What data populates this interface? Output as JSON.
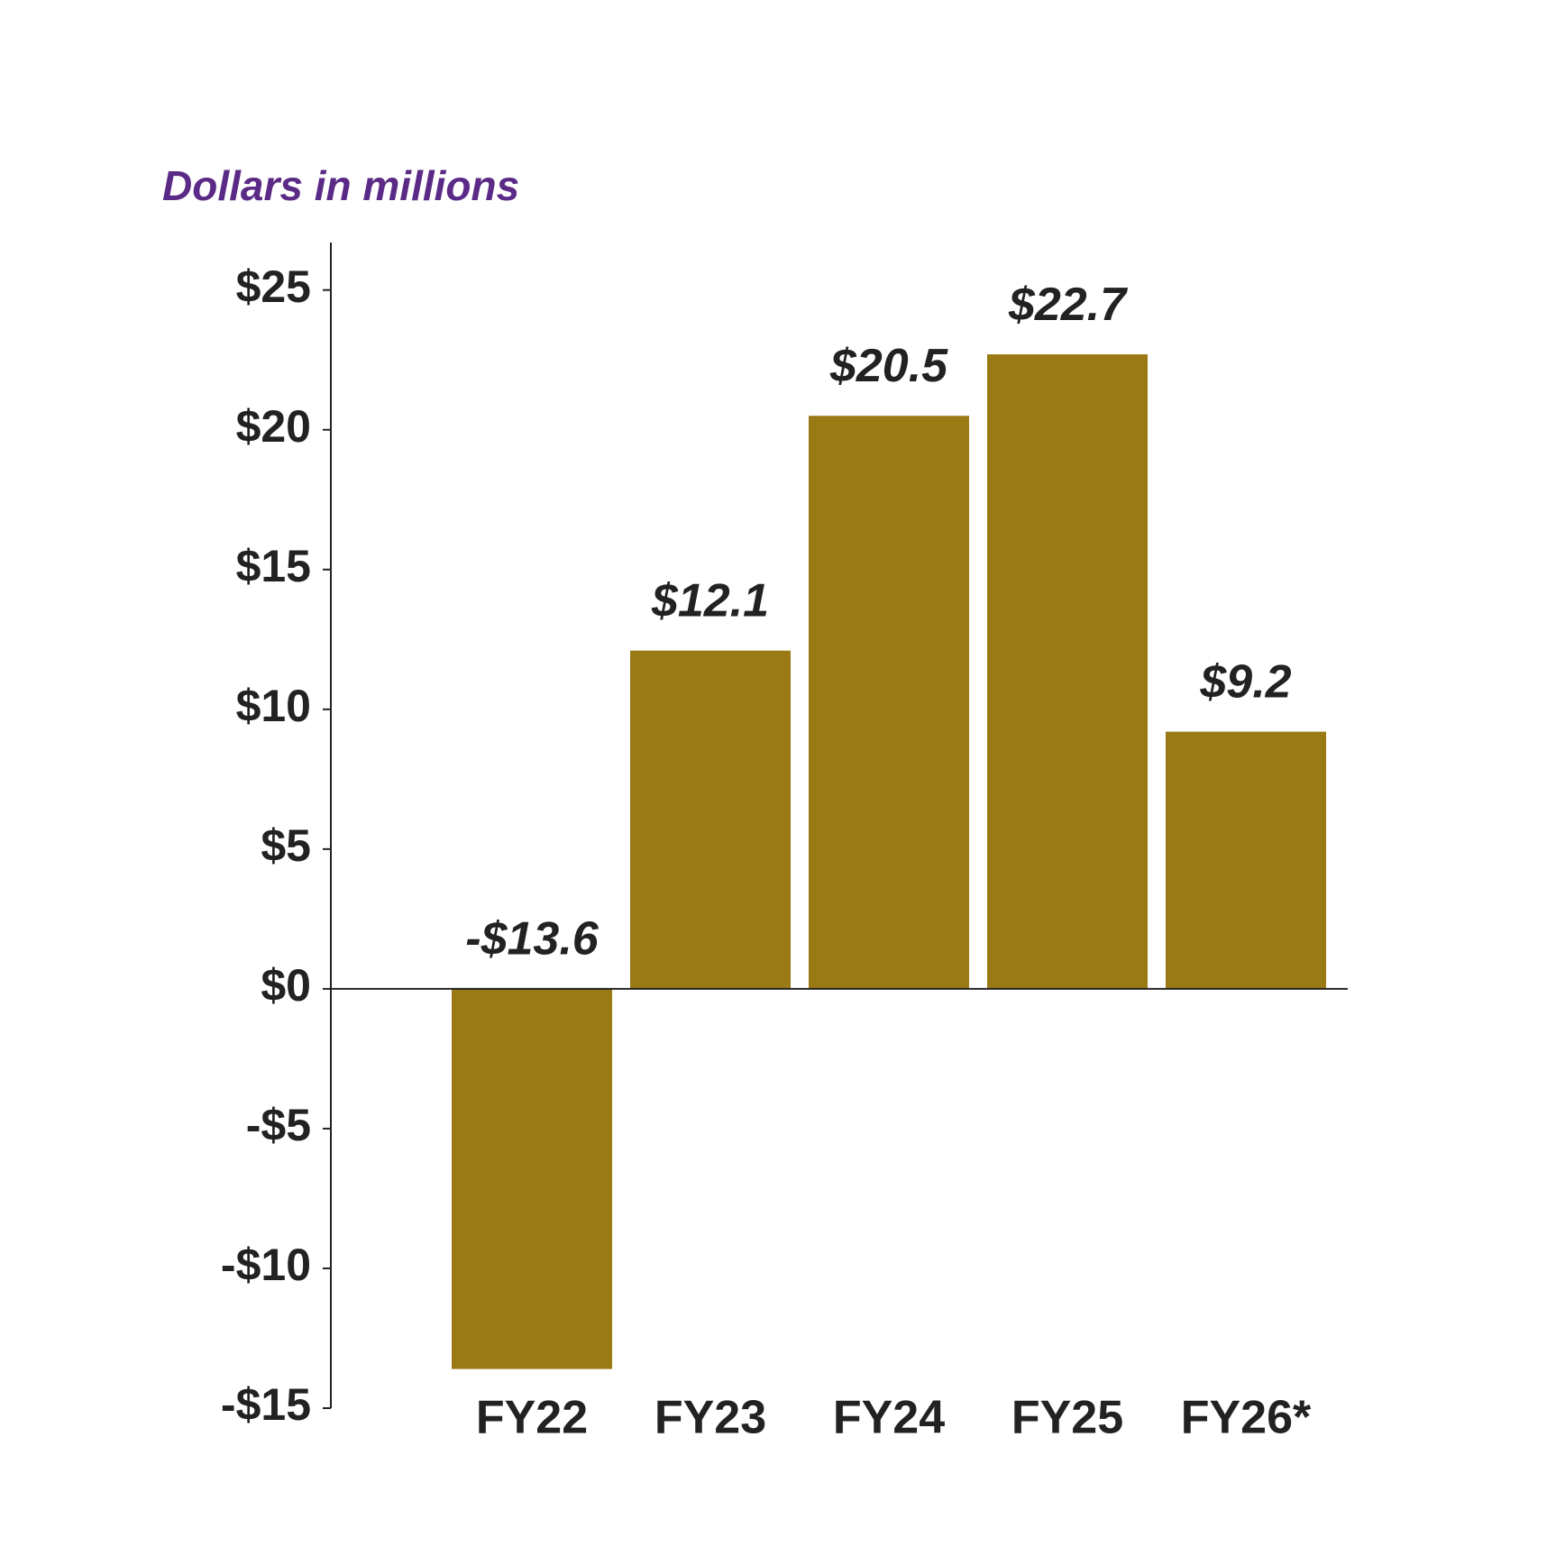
{
  "chart_data": {
    "type": "bar",
    "subtitle": "Dollars in millions",
    "categories": [
      "FY22",
      "FY23",
      "FY24",
      "FY25",
      "FY26*"
    ],
    "values": [
      -13.6,
      12.1,
      20.5,
      22.7,
      9.2
    ],
    "value_labels": [
      "-$13.6",
      "$12.1",
      "$20.5",
      "$22.7",
      "$9.2"
    ],
    "color": "#9a7a15",
    "ylim": [
      -15,
      26.7
    ],
    "yticks": [
      {
        "value": -15,
        "label": "-$15"
      },
      {
        "value": -10,
        "label": "-$10"
      },
      {
        "value": -5,
        "label": "-$5"
      },
      {
        "value": 0,
        "label": "$0"
      },
      {
        "value": 5,
        "label": "$5"
      },
      {
        "value": 10,
        "label": "$10"
      },
      {
        "value": 15,
        "label": "$15"
      },
      {
        "value": 20,
        "label": "$20"
      },
      {
        "value": 25,
        "label": "$25"
      }
    ],
    "grid": false
  }
}
